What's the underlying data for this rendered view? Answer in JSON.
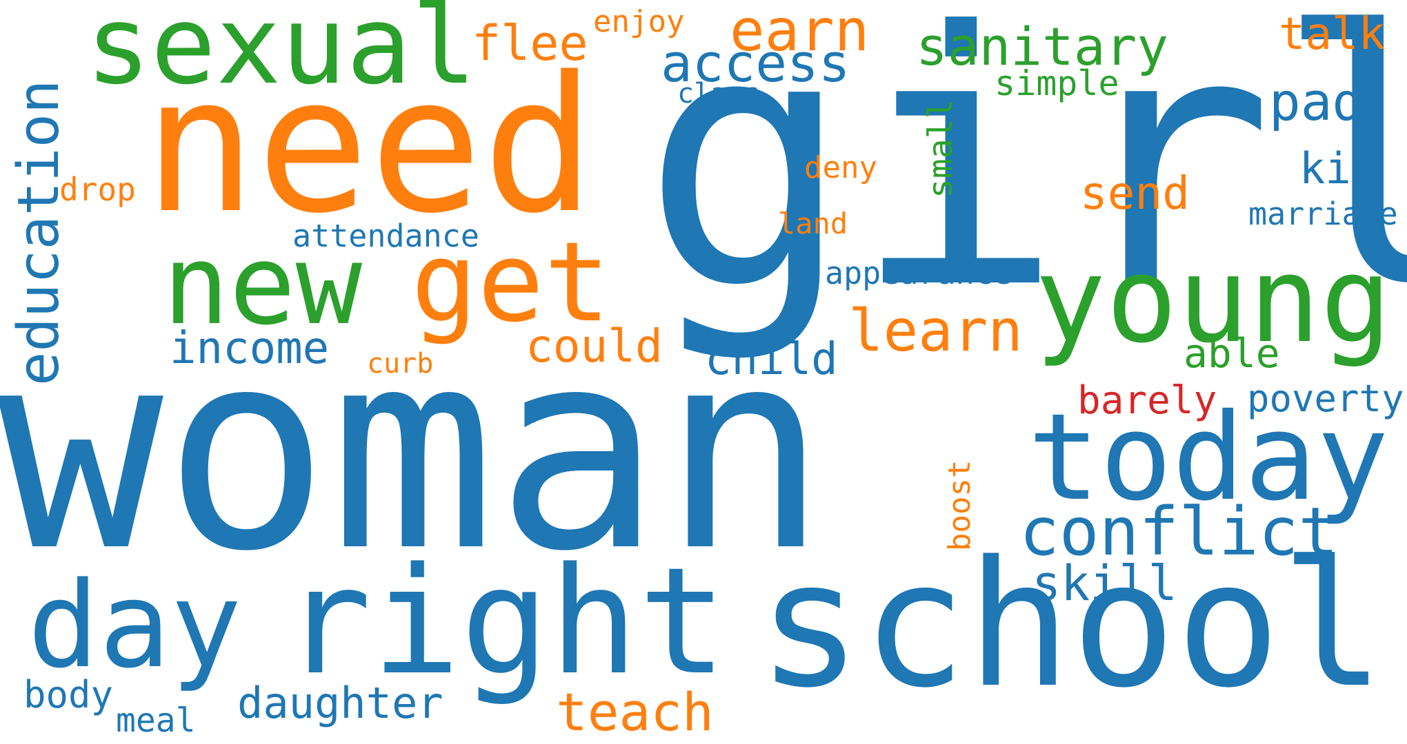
{
  "palette": {
    "blue": "#1f77b4",
    "orange": "#ff7f0e",
    "green": "#2ca02c",
    "red": "#d62728",
    "background": "#ffffff"
  },
  "words": {
    "woman": "woman",
    "girl": "girl",
    "need": "need",
    "school": "school",
    "right": "right",
    "today": "today",
    "young": "young",
    "sexual": "sexual",
    "new": "new",
    "get": "get",
    "day": "day",
    "education": "education",
    "conflict": "conflict",
    "sanitary": "sanitary",
    "access": "access",
    "earn": "earn",
    "flee": "flee",
    "learn": "learn",
    "pad": "pad",
    "income": "income",
    "could": "could",
    "teach": "teach",
    "daughter": "daughter",
    "child": "child",
    "talk": "talk",
    "send": "send",
    "kid": "kid",
    "skill": "skill",
    "poverty": "poverty",
    "able": "able",
    "barely": "barely",
    "marriage": "marriage",
    "body": "body",
    "attendance": "attendance",
    "appearance": "appearance",
    "simple": "simple",
    "enjoy": "enjoy",
    "meal": "meal",
    "small": "small",
    "deny": "deny",
    "drop": "drop",
    "class": "class",
    "land": "land",
    "curb": "curb",
    "boost": "boost"
  }
}
